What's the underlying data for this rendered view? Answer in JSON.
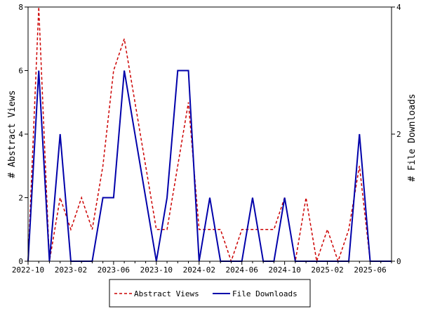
{
  "chart_data": {
    "type": "line",
    "ylabel_left": "# Abstract Views",
    "ylabel_right": "# File Downloads",
    "ylim_left": [
      0,
      8
    ],
    "ylim_right": [
      0,
      4
    ],
    "yticks_left": [
      0,
      2,
      4,
      6,
      8
    ],
    "yticks_right": [
      0,
      2,
      4
    ],
    "grid": false,
    "legend_position": "bottom-center",
    "x_tick_labels": [
      "2022-10",
      "2023-02",
      "2023-06",
      "2023-10",
      "2024-02",
      "2024-06",
      "2024-10",
      "2025-02",
      "2025-06"
    ],
    "x_tick_index": [
      0,
      4,
      8,
      12,
      16,
      20,
      24,
      28,
      32
    ],
    "x": [
      "2022-10",
      "2022-11",
      "2022-12",
      "2023-01",
      "2023-02",
      "2023-03",
      "2023-04",
      "2023-05",
      "2023-06",
      "2023-07",
      "2023-08",
      "2023-09",
      "2023-10",
      "2023-11",
      "2023-12",
      "2024-01",
      "2024-02",
      "2024-03",
      "2024-04",
      "2024-05",
      "2024-06",
      "2024-07",
      "2024-08",
      "2024-09",
      "2024-10",
      "2024-11",
      "2024-12",
      "2025-01",
      "2025-02",
      "2025-03",
      "2025-04",
      "2025-05",
      "2025-06",
      "2025-07",
      "2025-08"
    ],
    "series": [
      {
        "name": "Abstract Views",
        "axis": "left",
        "style": "dashed",
        "color": "#cc0000",
        "values": [
          0,
          8,
          0,
          2,
          1,
          2,
          1,
          3,
          6,
          7,
          5,
          3,
          1,
          1,
          3,
          5,
          1,
          1,
          1,
          0,
          1,
          1,
          1,
          1,
          2,
          0,
          2,
          0,
          1,
          0,
          1,
          3,
          0,
          0,
          0
        ]
      },
      {
        "name": "File Downloads",
        "axis": "right",
        "style": "solid",
        "color": "#0000aa",
        "values": [
          0,
          3,
          0,
          2,
          0,
          0,
          0,
          1,
          1,
          3,
          2,
          1,
          0,
          1,
          3,
          3,
          0,
          1,
          0,
          0,
          0,
          1,
          0,
          0,
          1,
          0,
          0,
          0,
          0,
          0,
          0,
          2,
          0,
          0,
          0
        ]
      }
    ]
  }
}
